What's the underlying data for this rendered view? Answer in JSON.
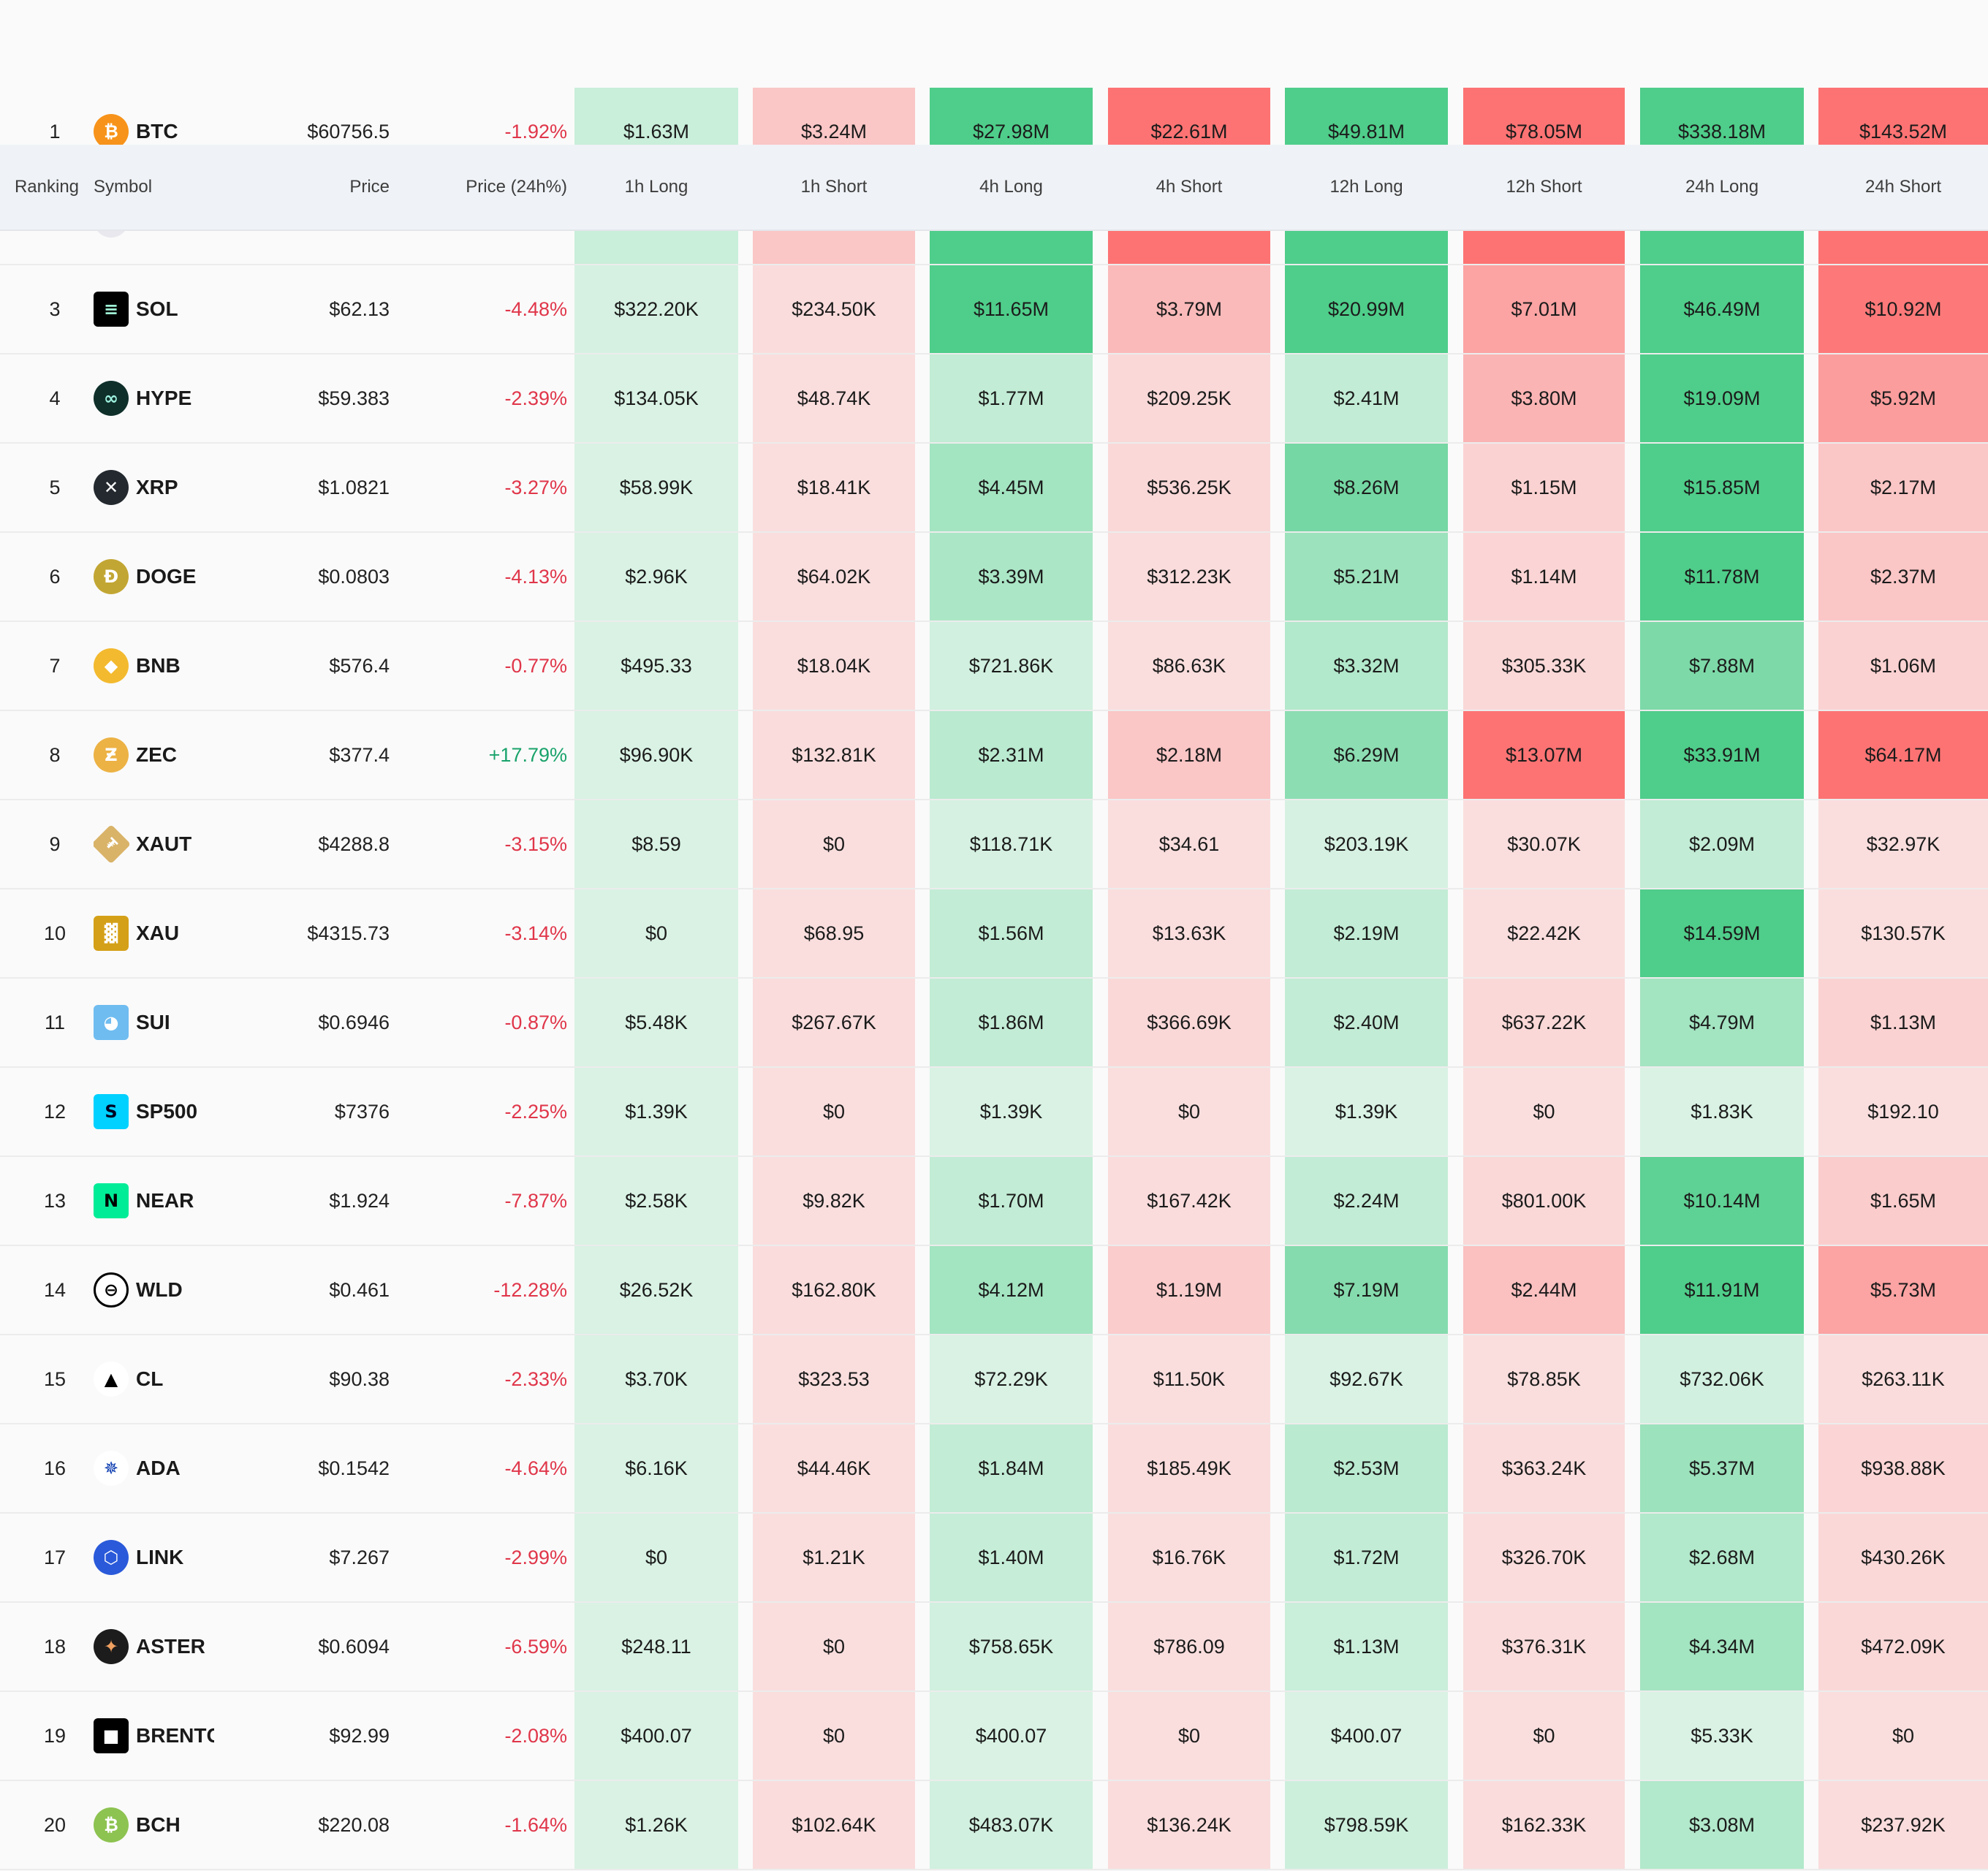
{
  "columns": [
    "Ranking",
    "Symbol",
    "Price",
    "Price (24h%)",
    "1h Long",
    "1h Short",
    "4h Long",
    "4h Short",
    "12h Long",
    "12h Short",
    "24h Long",
    "24h Short"
  ],
  "colors": {
    "negative": "#e0364a",
    "positive": "#19a36b",
    "long_heat": "#4fcd8a",
    "short_heat": "#fd7373",
    "header_bg": "#eff2f6"
  },
  "rows": [
    {
      "rank": "1",
      "symbol": "BTC",
      "icon": "bitcoin-icon",
      "price": "$60756.5",
      "change": "-1.92%",
      "cells": [
        "$1.63M",
        "$3.24M",
        "$27.98M",
        "$22.61M",
        "$49.81M",
        "$78.05M",
        "$338.18M",
        "$143.52M"
      ],
      "heat": [
        0.2,
        0.3,
        1,
        1,
        1,
        1,
        1,
        1
      ]
    },
    {
      "rank": "",
      "symbol": "",
      "icon": "ethereum-icon",
      "price": "",
      "change": "",
      "cells": [
        "",
        "",
        "",
        "",
        "",
        "",
        "",
        ""
      ],
      "heat": [
        0.2,
        0.3,
        1,
        1,
        1,
        1,
        1,
        1
      ]
    },
    {
      "rank": "3",
      "symbol": "SOL",
      "icon": "solana-icon",
      "price": "$62.13",
      "change": "-4.48%",
      "cells": [
        "$322.20K",
        "$234.50K",
        "$11.65M",
        "$3.79M",
        "$20.99M",
        "$7.01M",
        "$46.49M",
        "$10.92M"
      ],
      "heat": [
        0.12,
        0.12,
        1,
        0.4,
        1,
        0.6,
        1,
        0.95
      ]
    },
    {
      "rank": "4",
      "symbol": "HYPE",
      "icon": "hyperliquid-icon",
      "price": "$59.383",
      "change": "-2.39%",
      "cells": [
        "$134.05K",
        "$48.74K",
        "$1.77M",
        "$209.25K",
        "$2.41M",
        "$3.80M",
        "$19.09M",
        "$5.92M"
      ],
      "heat": [
        0.1,
        0.1,
        0.25,
        0.15,
        0.25,
        0.45,
        1,
        0.65
      ]
    },
    {
      "rank": "5",
      "symbol": "XRP",
      "icon": "xrp-icon",
      "price": "$1.0821",
      "change": "-3.27%",
      "cells": [
        "$58.99K",
        "$18.41K",
        "$4.45M",
        "$536.25K",
        "$8.26M",
        "$1.15M",
        "$15.85M",
        "$2.17M"
      ],
      "heat": [
        0.1,
        0.1,
        0.45,
        0.15,
        0.75,
        0.2,
        1,
        0.3
      ]
    },
    {
      "rank": "6",
      "symbol": "DOGE",
      "icon": "dogecoin-icon",
      "price": "$0.0803",
      "change": "-4.13%",
      "cells": [
        "$2.96K",
        "$64.02K",
        "$3.39M",
        "$312.23K",
        "$5.21M",
        "$1.14M",
        "$11.78M",
        "$2.37M"
      ],
      "heat": [
        0.1,
        0.1,
        0.4,
        0.12,
        0.5,
        0.18,
        1,
        0.3
      ]
    },
    {
      "rank": "7",
      "symbol": "BNB",
      "icon": "bnb-icon",
      "price": "$576.4",
      "change": "-0.77%",
      "cells": [
        "$495.33",
        "$18.04K",
        "$721.86K",
        "$86.63K",
        "$3.32M",
        "$305.33K",
        "$7.88M",
        "$1.06M"
      ],
      "heat": [
        0.1,
        0.1,
        0.15,
        0.1,
        0.35,
        0.15,
        0.7,
        0.2
      ]
    },
    {
      "rank": "8",
      "symbol": "ZEC",
      "icon": "zcash-icon",
      "price": "$377.4",
      "change": "+17.79%",
      "cells": [
        "$96.90K",
        "$132.81K",
        "$2.31M",
        "$2.18M",
        "$6.29M",
        "$13.07M",
        "$33.91M",
        "$64.17M"
      ],
      "heat": [
        0.1,
        0.12,
        0.3,
        0.3,
        0.6,
        1,
        1,
        1
      ]
    },
    {
      "rank": "9",
      "symbol": "XAUT",
      "icon": "tether-gold-icon",
      "price": "$4288.8",
      "change": "-3.15%",
      "cells": [
        "$8.59",
        "$0",
        "$118.71K",
        "$34.61",
        "$203.19K",
        "$30.07K",
        "$2.09M",
        "$32.97K"
      ],
      "heat": [
        0.1,
        0.1,
        0.12,
        0.1,
        0.12,
        0.1,
        0.25,
        0.1
      ]
    },
    {
      "rank": "10",
      "symbol": "XAU",
      "icon": "gold-bars-icon",
      "price": "$4315.73",
      "change": "-3.14%",
      "cells": [
        "$0",
        "$68.95",
        "$1.56M",
        "$13.63K",
        "$2.19M",
        "$22.42K",
        "$14.59M",
        "$130.57K"
      ],
      "heat": [
        0.1,
        0.1,
        0.25,
        0.1,
        0.25,
        0.1,
        1,
        0.1
      ]
    },
    {
      "rank": "11",
      "symbol": "SUI",
      "icon": "sui-icon",
      "price": "$0.6946",
      "change": "-0.87%",
      "cells": [
        "$5.48K",
        "$267.67K",
        "$1.86M",
        "$366.69K",
        "$2.40M",
        "$637.22K",
        "$4.79M",
        "$1.13M"
      ],
      "heat": [
        0.1,
        0.12,
        0.25,
        0.15,
        0.25,
        0.15,
        0.45,
        0.2
      ]
    },
    {
      "rank": "12",
      "symbol": "SP500",
      "icon": "sp500-icon",
      "price": "$7376",
      "change": "-2.25%",
      "cells": [
        "$1.39K",
        "$0",
        "$1.39K",
        "$0",
        "$1.39K",
        "$0",
        "$1.83K",
        "$192.10"
      ],
      "heat": [
        0.1,
        0.1,
        0.1,
        0.1,
        0.1,
        0.1,
        0.1,
        0.1
      ]
    },
    {
      "rank": "13",
      "symbol": "NEAR",
      "icon": "near-icon",
      "price": "$1.924",
      "change": "-7.87%",
      "cells": [
        "$2.58K",
        "$9.82K",
        "$1.70M",
        "$167.42K",
        "$2.24M",
        "$801.00K",
        "$10.14M",
        "$1.65M"
      ],
      "heat": [
        0.1,
        0.1,
        0.25,
        0.12,
        0.25,
        0.15,
        0.9,
        0.25
      ]
    },
    {
      "rank": "14",
      "symbol": "WLD",
      "icon": "worldcoin-icon",
      "price": "$0.461",
      "change": "-12.28%",
      "cells": [
        "$26.52K",
        "$162.80K",
        "$4.12M",
        "$1.19M",
        "$7.19M",
        "$2.44M",
        "$11.91M",
        "$5.73M"
      ],
      "heat": [
        0.1,
        0.12,
        0.45,
        0.25,
        0.65,
        0.35,
        1,
        0.6
      ]
    },
    {
      "rank": "15",
      "symbol": "CL",
      "icon": "crude-oil-icon",
      "price": "$90.38",
      "change": "-2.33%",
      "cells": [
        "$3.70K",
        "$323.53",
        "$72.29K",
        "$11.50K",
        "$92.67K",
        "$78.85K",
        "$732.06K",
        "$263.11K"
      ],
      "heat": [
        0.1,
        0.1,
        0.1,
        0.1,
        0.1,
        0.1,
        0.15,
        0.12
      ]
    },
    {
      "rank": "16",
      "symbol": "ADA",
      "icon": "cardano-icon",
      "price": "$0.1542",
      "change": "-4.64%",
      "cells": [
        "$6.16K",
        "$44.46K",
        "$1.84M",
        "$185.49K",
        "$2.53M",
        "$363.24K",
        "$5.37M",
        "$938.88K"
      ],
      "heat": [
        0.1,
        0.1,
        0.25,
        0.12,
        0.3,
        0.12,
        0.5,
        0.18
      ]
    },
    {
      "rank": "17",
      "symbol": "LINK",
      "icon": "chainlink-icon",
      "price": "$7.267",
      "change": "-2.99%",
      "cells": [
        "$0",
        "$1.21K",
        "$1.40M",
        "$16.76K",
        "$1.72M",
        "$326.70K",
        "$2.68M",
        "$430.26K"
      ],
      "heat": [
        0.1,
        0.1,
        0.22,
        0.1,
        0.25,
        0.12,
        0.35,
        0.15
      ]
    },
    {
      "rank": "18",
      "symbol": "ASTER",
      "icon": "aster-icon",
      "price": "$0.6094",
      "change": "-6.59%",
      "cells": [
        "$248.11",
        "$0",
        "$758.65K",
        "$786.09",
        "$1.13M",
        "$376.31K",
        "$4.34M",
        "$472.09K"
      ],
      "heat": [
        0.1,
        0.1,
        0.15,
        0.1,
        0.2,
        0.12,
        0.45,
        0.15
      ]
    },
    {
      "rank": "19",
      "symbol": "BRENTC",
      "icon": "brent-oil-icon",
      "price": "$92.99",
      "change": "-2.08%",
      "cells": [
        "$400.07",
        "$0",
        "$400.07",
        "$0",
        "$400.07",
        "$0",
        "$5.33K",
        "$0"
      ],
      "heat": [
        0.1,
        0.1,
        0.1,
        0.1,
        0.1,
        0.1,
        0.1,
        0.1
      ]
    },
    {
      "rank": "20",
      "symbol": "BCH",
      "icon": "bitcoin-cash-icon",
      "price": "$220.08",
      "change": "-1.64%",
      "cells": [
        "$1.26K",
        "$102.64K",
        "$483.07K",
        "$136.24K",
        "$798.59K",
        "$162.33K",
        "$3.08M",
        "$237.92K"
      ],
      "heat": [
        0.1,
        0.12,
        0.15,
        0.12,
        0.18,
        0.12,
        0.35,
        0.12
      ]
    }
  ]
}
